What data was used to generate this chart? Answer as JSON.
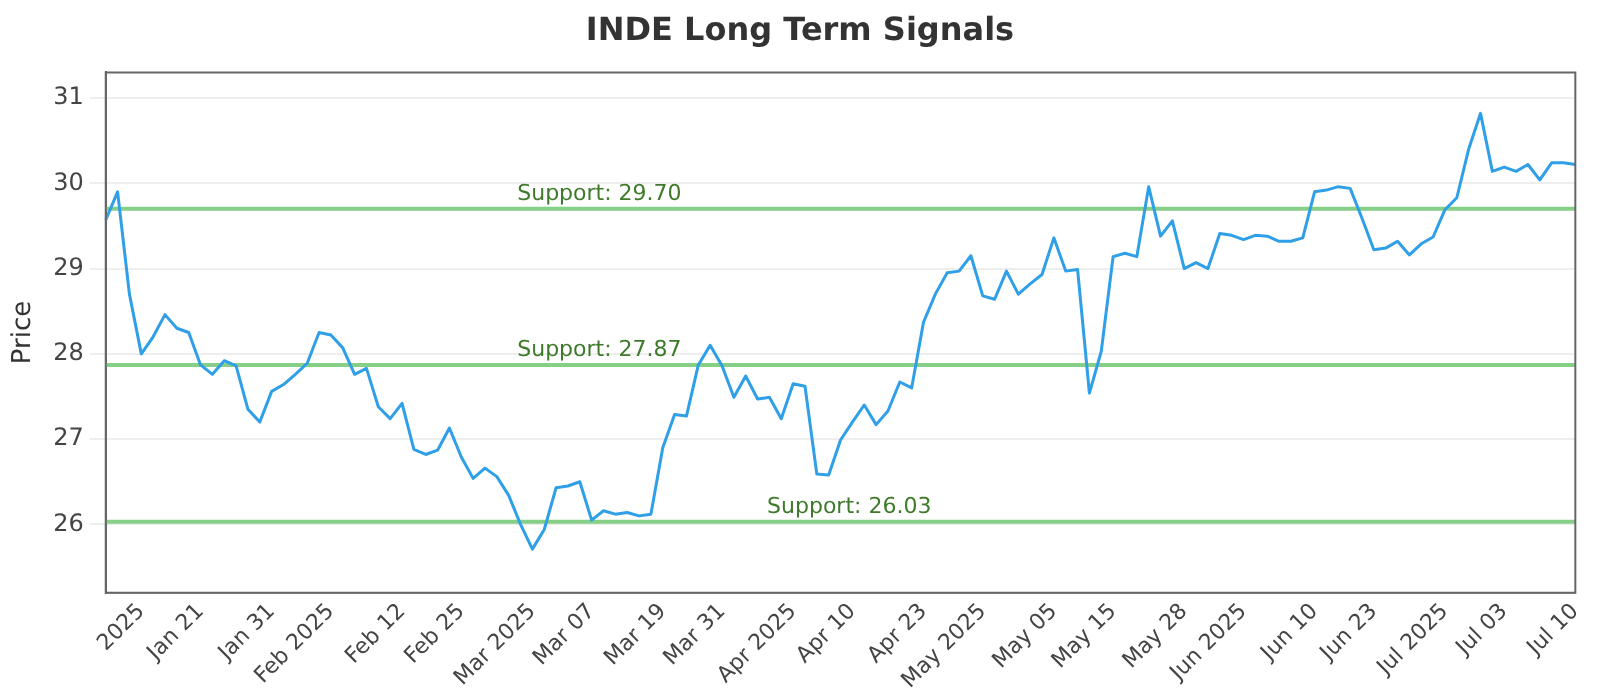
{
  "chart_data": {
    "type": "line",
    "title": "INDE Long Term Signals",
    "ylabel": "Price",
    "categories": [
      null,
      null,
      null,
      "2025",
      null,
      null,
      null,
      null,
      "Jan 21",
      null,
      null,
      null,
      null,
      null,
      "Jan 31",
      null,
      null,
      null,
      null,
      "Feb 2025",
      null,
      null,
      null,
      null,
      null,
      "Feb 12",
      null,
      null,
      null,
      null,
      "Feb 25",
      null,
      null,
      null,
      null,
      null,
      "Mar 2025",
      null,
      null,
      null,
      null,
      "Mar 07",
      null,
      null,
      null,
      null,
      null,
      "Mar 19",
      null,
      null,
      null,
      null,
      "Mar 31",
      null,
      null,
      null,
      null,
      null,
      "Apr 2025",
      null,
      null,
      null,
      null,
      "Apr 10",
      null,
      null,
      null,
      null,
      null,
      "Apr 23",
      null,
      null,
      null,
      null,
      "May 2025",
      null,
      null,
      null,
      null,
      null,
      "May 05",
      null,
      null,
      null,
      null,
      "May 15",
      null,
      null,
      null,
      null,
      null,
      "May 28",
      null,
      null,
      null,
      null,
      "Jun 2025",
      null,
      null,
      null,
      null,
      null,
      "Jun 10",
      null,
      null,
      null,
      null,
      "Jun 23",
      null,
      null,
      null,
      null,
      null,
      "Jul 2025",
      null,
      null,
      null,
      null,
      "Jul 03",
      null,
      null,
      null,
      null,
      null,
      "Jul 10"
    ],
    "series": [
      {
        "color": "#2f9fe8",
        "values": [
          29.57,
          29.9,
          28.7,
          28.0,
          28.2,
          28.46,
          28.3,
          28.25,
          27.87,
          27.76,
          27.92,
          27.86,
          27.35,
          27.2,
          27.56,
          27.64,
          27.76,
          27.89,
          28.25,
          28.22,
          28.07,
          27.76,
          27.83,
          27.38,
          27.24,
          27.42,
          26.88,
          26.82,
          26.87,
          27.13,
          26.79,
          26.54,
          26.66,
          26.56,
          26.34,
          26.0,
          25.71,
          25.94,
          26.43,
          26.45,
          26.5,
          26.05,
          26.16,
          26.12,
          26.14,
          26.1,
          26.12,
          26.9,
          27.29,
          27.27,
          27.87,
          28.1,
          27.86,
          27.49,
          27.74,
          27.47,
          27.49,
          27.24,
          27.65,
          27.62,
          26.59,
          26.58,
          26.99,
          27.2,
          27.4,
          27.17,
          27.33,
          27.67,
          27.6,
          28.37,
          28.7,
          28.95,
          28.97,
          29.15,
          28.68,
          28.64,
          28.97,
          28.7,
          28.82,
          28.93,
          29.36,
          28.97,
          28.99,
          27.54,
          28.03,
          29.14,
          29.18,
          29.14,
          29.96,
          29.38,
          29.56,
          29.0,
          29.07,
          29.0,
          29.41,
          29.39,
          29.34,
          29.39,
          29.38,
          29.32,
          29.32,
          29.36,
          29.9,
          29.92,
          29.96,
          29.94,
          29.59,
          29.22,
          29.24,
          29.32,
          29.16,
          29.29,
          29.37,
          29.69,
          29.83,
          30.4,
          30.82,
          30.14,
          30.19,
          30.14,
          30.22,
          30.04,
          30.24,
          30.24,
          30.22
        ]
      }
    ],
    "ylim": [
      25.2,
      31.3
    ],
    "yticks": [
      26,
      27,
      28,
      29,
      30,
      31
    ],
    "grid": "y",
    "legend": false,
    "marker": "none",
    "line_style": "solid",
    "ref_lines": [
      {
        "axis": "y",
        "value": 29.7,
        "label": "Support: 29.70",
        "color": "#86cf86"
      },
      {
        "axis": "y",
        "value": 27.87,
        "label": "Support: 27.87",
        "color": "#86cf86"
      },
      {
        "axis": "y",
        "value": 26.03,
        "label": "Support: 26.03",
        "color": "#86cf86"
      }
    ]
  }
}
